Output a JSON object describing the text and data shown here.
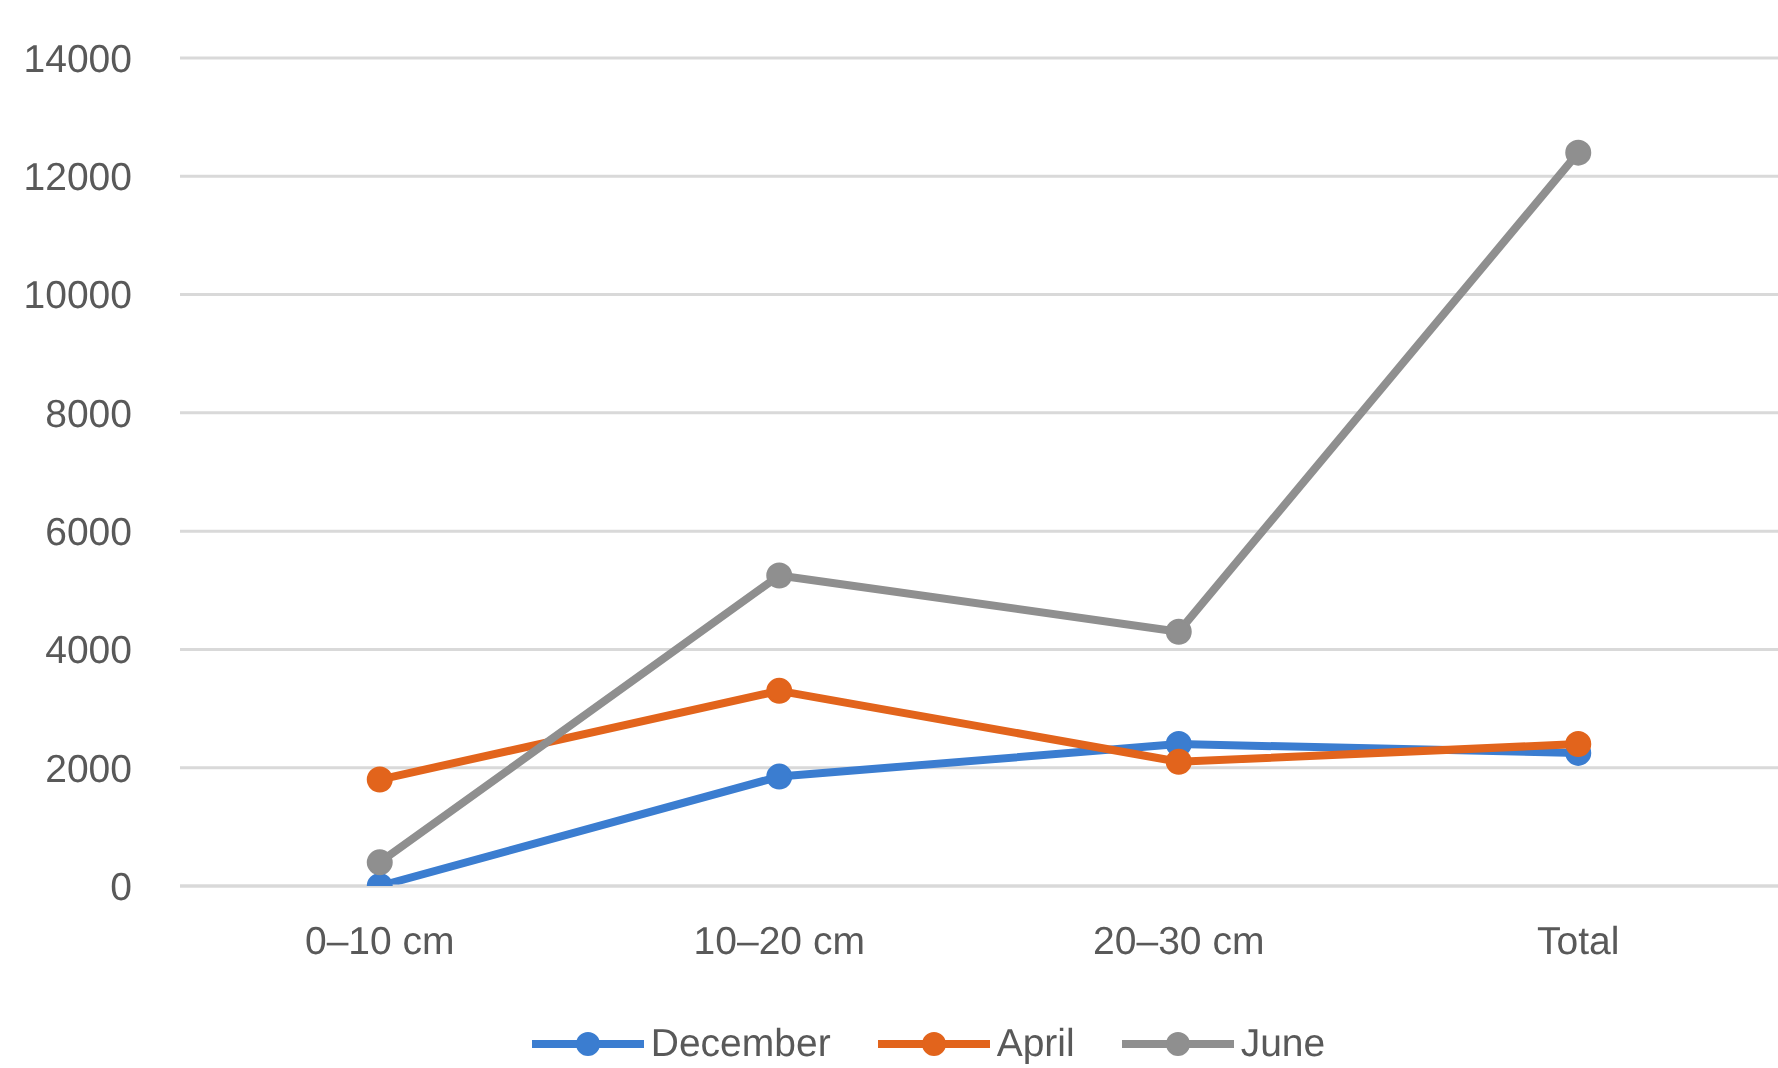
{
  "chart_data": {
    "type": "line",
    "categories": [
      "0–10 cm",
      "10–20 cm",
      "20–30 cm",
      "Total"
    ],
    "series": [
      {
        "name": "December",
        "color": "#3b7dd0",
        "values": [
          0,
          1850,
          2400,
          2250
        ]
      },
      {
        "name": "April",
        "color": "#e2641c",
        "values": [
          1800,
          3300,
          2100,
          2400
        ]
      },
      {
        "name": "June",
        "color": "#8f8f8f",
        "values": [
          400,
          5250,
          4300,
          12400
        ]
      }
    ],
    "ylim": [
      0,
      14000
    ],
    "yticks": [
      0,
      2000,
      4000,
      6000,
      8000,
      10000,
      12000,
      14000
    ],
    "grid": "y",
    "legend": "bottom",
    "marker": "circle",
    "line_style": "solid"
  }
}
